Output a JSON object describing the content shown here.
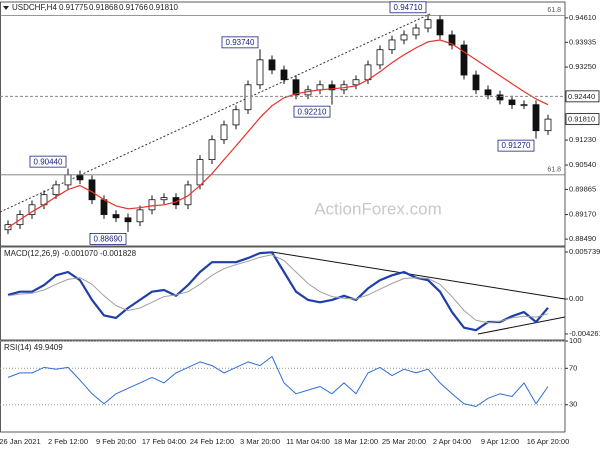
{
  "chart_data": [
    {
      "type": "candlestick",
      "header": {
        "symbol": "USDCHF,H4",
        "ohlc": [
          "0.91775",
          "0.91868",
          "0.91766",
          "0.91810"
        ]
      },
      "watermark": "ActionForex.com",
      "categories": [
        null,
        "26 Jan 2021",
        null,
        null,
        null,
        "2 Feb 12:00",
        null,
        null,
        null,
        "9 Feb 20:00",
        null,
        null,
        null,
        "17 Feb 04:00",
        null,
        null,
        null,
        "24 Feb 12:00",
        null,
        null,
        null,
        "3 Mar 20:00",
        null,
        null,
        null,
        "11 Mar 04:00",
        null,
        null,
        null,
        "18 Mar 12:00",
        null,
        null,
        null,
        "25 Mar 20:00",
        null,
        null,
        null,
        "2 Apr 04:00",
        null,
        null,
        null,
        "9 Apr 12:00",
        null,
        null,
        null,
        "16 Apr 20:00"
      ],
      "open": [
        0.8875,
        0.8889,
        0.8917,
        0.8944,
        0.8972,
        0.8999,
        0.9027,
        0.9013,
        0.8958,
        0.8917,
        0.8908,
        0.8897,
        0.893,
        0.8958,
        0.8964,
        0.8944,
        0.8999,
        0.9069,
        0.9124,
        0.9165,
        0.9207,
        0.9276,
        0.9345,
        0.9317,
        0.929,
        0.9248,
        0.9262,
        0.9276,
        0.9262,
        0.9276,
        0.929,
        0.9331,
        0.9373,
        0.94,
        0.9414,
        0.9433,
        0.9456,
        0.9414,
        0.9386,
        0.9303,
        0.9262,
        0.9248,
        0.9234,
        0.9221,
        0.9221,
        0.9149
      ],
      "high": [
        0.8901,
        0.8929,
        0.8956,
        0.8984,
        0.9011,
        0.9044,
        0.9039,
        0.9025,
        0.897,
        0.8929,
        0.892,
        0.8942,
        0.897,
        0.8976,
        0.8976,
        0.9011,
        0.9081,
        0.9136,
        0.9177,
        0.9219,
        0.9288,
        0.9374,
        0.9357,
        0.9329,
        0.9302,
        0.9274,
        0.9288,
        0.9288,
        0.9288,
        0.9302,
        0.9343,
        0.9385,
        0.9412,
        0.9426,
        0.9445,
        0.9471,
        0.9468,
        0.9426,
        0.9398,
        0.9315,
        0.9274,
        0.926,
        0.9246,
        0.9233,
        0.9233,
        0.9193
      ],
      "low": [
        0.8863,
        0.8877,
        0.8905,
        0.8932,
        0.896,
        0.8987,
        0.9001,
        0.8946,
        0.8905,
        0.8896,
        0.8869,
        0.8885,
        0.8918,
        0.8946,
        0.8932,
        0.8932,
        0.8987,
        0.9057,
        0.9112,
        0.9153,
        0.9195,
        0.9264,
        0.9305,
        0.9278,
        0.9236,
        0.9236,
        0.925,
        0.9221,
        0.925,
        0.9264,
        0.9278,
        0.9319,
        0.9361,
        0.9388,
        0.9402,
        0.9421,
        0.9402,
        0.9374,
        0.9291,
        0.925,
        0.9236,
        0.9222,
        0.9209,
        0.9209,
        0.9127,
        0.9137
      ],
      "close": [
        0.8889,
        0.8917,
        0.8944,
        0.8972,
        0.8999,
        0.9027,
        0.9013,
        0.8958,
        0.8917,
        0.8908,
        0.8897,
        0.893,
        0.8958,
        0.8964,
        0.8944,
        0.8999,
        0.9069,
        0.9124,
        0.9165,
        0.9207,
        0.9276,
        0.9345,
        0.9317,
        0.929,
        0.9248,
        0.9262,
        0.9276,
        0.9262,
        0.9276,
        0.929,
        0.9331,
        0.9373,
        0.94,
        0.9414,
        0.9433,
        0.9456,
        0.9414,
        0.9386,
        0.9303,
        0.9262,
        0.9248,
        0.9234,
        0.9221,
        0.9221,
        0.9149,
        0.9181
      ],
      "bull_color": "#ffffff",
      "bear_color": "#111111",
      "series": [
        {
          "color": "#e8322a",
          "values": [
            0.8881,
            0.8903,
            0.8925,
            0.8944,
            0.8966,
            0.8986,
            0.8997,
            0.898,
            0.8958,
            0.8941,
            0.8933,
            0.8936,
            0.8941,
            0.8944,
            0.8952,
            0.8969,
            0.8997,
            0.903,
            0.9069,
            0.9107,
            0.9146,
            0.9185,
            0.9218,
            0.924,
            0.9251,
            0.9257,
            0.9262,
            0.9265,
            0.9268,
            0.9273,
            0.929,
            0.9312,
            0.9337,
            0.9359,
            0.9378,
            0.9395,
            0.94,
            0.9389,
            0.9367,
            0.9345,
            0.9323,
            0.9301,
            0.9279,
            0.9257,
            0.9237,
            0.9221
          ]
        }
      ],
      "ylim": [
        0.883,
        0.9505
      ],
      "yticks": [
        {
          "value": 0.9461,
          "label": "0.94610"
        },
        {
          "value": 0.93935,
          "label": "0.93935"
        },
        {
          "value": 0.9325,
          "label": "0.93250"
        },
        {
          "value": 0.9123,
          "label": "0.91230"
        },
        {
          "value": 0.9054,
          "label": "0.90540"
        },
        {
          "value": 0.89865,
          "label": "0.89865"
        },
        {
          "value": 0.8917,
          "label": "0.89170"
        },
        {
          "value": 0.8849,
          "label": "0.88490"
        }
      ],
      "price_labels": [
        {
          "value": 0.9244,
          "label": "0.92440",
          "line": "dashed"
        },
        {
          "value": 0.9181,
          "label": "0.91810"
        }
      ],
      "levels": [
        {
          "value": 0.9468,
          "label": "61.8"
        },
        {
          "value": 0.9027,
          "label": "61.8"
        }
      ],
      "annotations": [
        {
          "value": 0.9044,
          "label": "0.90440"
        },
        {
          "value": 0.8869,
          "label": "0.88690"
        },
        {
          "value": 0.9374,
          "label": "0.93740"
        },
        {
          "value": 0.9221,
          "label": "0.92210"
        },
        {
          "value": 0.9471,
          "label": "0.94710"
        },
        {
          "value": 0.9127,
          "label": "0.91270"
        }
      ]
    },
    {
      "type": "line",
      "title": "MACD(12,26,9) -0.001070 -0.001828",
      "series": [
        {
          "color": "#1f3fa8",
          "width": 2.2,
          "values": [
            0.0005,
            0.0009,
            0.0009,
            0.0017,
            0.0029,
            0.0033,
            0.0023,
            -0.0001,
            -0.002,
            -0.0023,
            -0.0011,
            -0.0001,
            0.0009,
            0.0011,
            0.0004,
            0.0017,
            0.0033,
            0.0045,
            0.0045,
            0.0045,
            0.005,
            0.0056,
            0.0057,
            0.0033,
            0.0009,
            -0.0001,
            -0.0004,
            -0.0001,
            0.0004,
            -0.0001,
            0.0013,
            0.0023,
            0.0029,
            0.0033,
            0.0026,
            0.0023,
            0.0009,
            -0.0016,
            -0.0035,
            -0.0038,
            -0.0028,
            -0.0028,
            -0.0021,
            -0.0016,
            -0.0028,
            -0.00107
          ]
        },
        {
          "color": "#a0a0a0",
          "width": 1,
          "values": [
            0.0004,
            0.0006,
            0.0007,
            0.0011,
            0.0018,
            0.0024,
            0.0026,
            0.0018,
            0.0004,
            -0.0008,
            -0.0014,
            -0.0011,
            -0.0004,
            0.0003,
            0.0005,
            0.0009,
            0.0018,
            0.0029,
            0.0037,
            0.0042,
            0.0046,
            0.0051,
            0.0054,
            0.0047,
            0.0033,
            0.0019,
            0.0009,
            0.0003,
            0.0001,
            0.0,
            0.0005,
            0.0012,
            0.0019,
            0.0025,
            0.0026,
            0.0025,
            0.0018,
            0.0003,
            -0.0014,
            -0.0026,
            -0.0029,
            -0.0027,
            -0.0023,
            -0.0021,
            -0.0022,
            -0.0018
          ]
        }
      ],
      "ylim": [
        -0.005,
        0.00635
      ],
      "yticks": [
        0.005739,
        {
          "value": 0,
          "label": "0.00"
        },
        -0.004261
      ]
    },
    {
      "type": "line",
      "title": "RSI(14) 49.9409",
      "series": [
        {
          "color": "#2f6fd6",
          "width": 1,
          "values": [
            60,
            65,
            65,
            71,
            69,
            71,
            57,
            42,
            31,
            42,
            48,
            54,
            60,
            54,
            65,
            71,
            77,
            73,
            65,
            71,
            77,
            73,
            83,
            54,
            42,
            46,
            50,
            42,
            54,
            42,
            65,
            71,
            62,
            69,
            65,
            69,
            54,
            42,
            31,
            28,
            37,
            42,
            39,
            54,
            31,
            50
          ]
        }
      ],
      "ylim": [
        0,
        100
      ],
      "yticks": [
        100,
        70,
        30
      ],
      "grid": "dotted"
    }
  ]
}
